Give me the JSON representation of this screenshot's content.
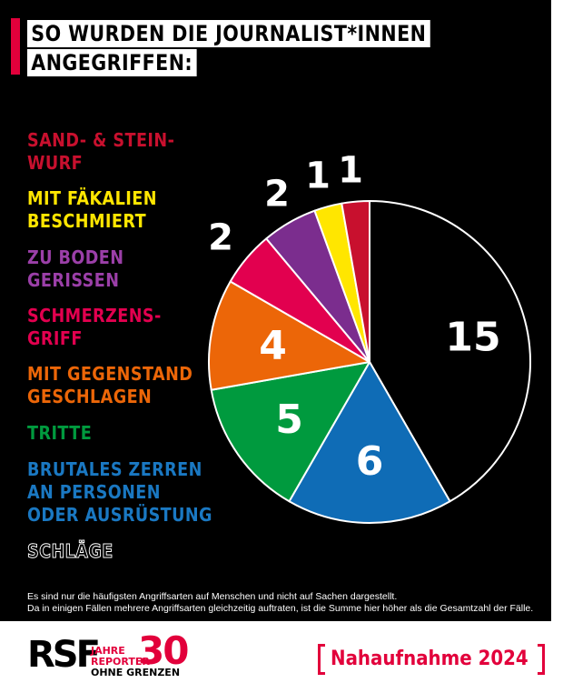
{
  "title": {
    "line1": "SO WURDEN DIE JOURNALIST*INNEN",
    "line2": "ANGEGRIFFEN:"
  },
  "colors": {
    "background": "#000000",
    "accent": "#e2003b",
    "sand_stein": "#c8102e",
    "faekalien": "#ffe600",
    "boden": "#7b2d8e",
    "schmerz": "#e2004f",
    "gegenstand": "#ec6608",
    "tritte": "#009a3e",
    "zerren": "#0f6cb6",
    "schlaege": "#000000"
  },
  "legend": [
    {
      "lines": [
        "SAND- & STEIN-",
        "WURF"
      ],
      "color": "#c8102e"
    },
    {
      "lines": [
        "MIT FÄKALIEN",
        "BESCHMIERT"
      ],
      "color": "#ffe600"
    },
    {
      "lines": [
        "ZU BODEN",
        "GERISSEN"
      ],
      "color": "#9b3fa8"
    },
    {
      "lines": [
        "SCHMERZENS-",
        "GRIFF"
      ],
      "color": "#e2004f"
    },
    {
      "lines": [
        "MIT GEGENSTAND",
        "GESCHLAGEN"
      ],
      "color": "#ec6608"
    },
    {
      "lines": [
        "TRITTE"
      ],
      "color": "#009a3e"
    },
    {
      "lines": [
        "BRUTALES ZERREN",
        "AN PERSONEN",
        "ODER AUSRÜSTUNG"
      ],
      "color": "#1a78c2"
    },
    {
      "lines": [
        "SCHLÄGE"
      ],
      "color": "outline"
    }
  ],
  "chart_data": {
    "type": "pie",
    "categories": [
      "Schläge",
      "Brutales Zerren an Personen oder Ausrüstung",
      "Tritte",
      "Mit Gegenstand geschlagen",
      "Schmerzensgriff",
      "Zu Boden gerissen",
      "Mit Fäkalien beschmiert",
      "Sand- & Steinwurf"
    ],
    "values": [
      15,
      6,
      5,
      4,
      2,
      2,
      1,
      1
    ],
    "colors": [
      "#000000",
      "#0f6cb6",
      "#009a3e",
      "#ec6608",
      "#e2004f",
      "#7b2d8e",
      "#ffe600",
      "#c8102e"
    ],
    "labels": [
      "15",
      "6",
      "5",
      "4",
      "2",
      "2",
      "1",
      "1"
    ],
    "start": "top",
    "direction": "clockwise"
  },
  "footnote": {
    "line1": "Es sind nur die häufigsten Angriffsarten auf Menschen und nicht auf Sachen dargestellt.",
    "line2": "Da in einigen Fällen mehrere Angriffsarten gleichzeitig auftraten, ist die Summe hier höher als die Gesamtzahl der Fälle."
  },
  "logo": {
    "rsf": "RSF",
    "thirty": "30",
    "line1": "JAHRE",
    "line2": "REPORTER",
    "line3": "OHNE GRENZEN"
  },
  "badge": {
    "text": "Nahaufnahme 2024"
  }
}
